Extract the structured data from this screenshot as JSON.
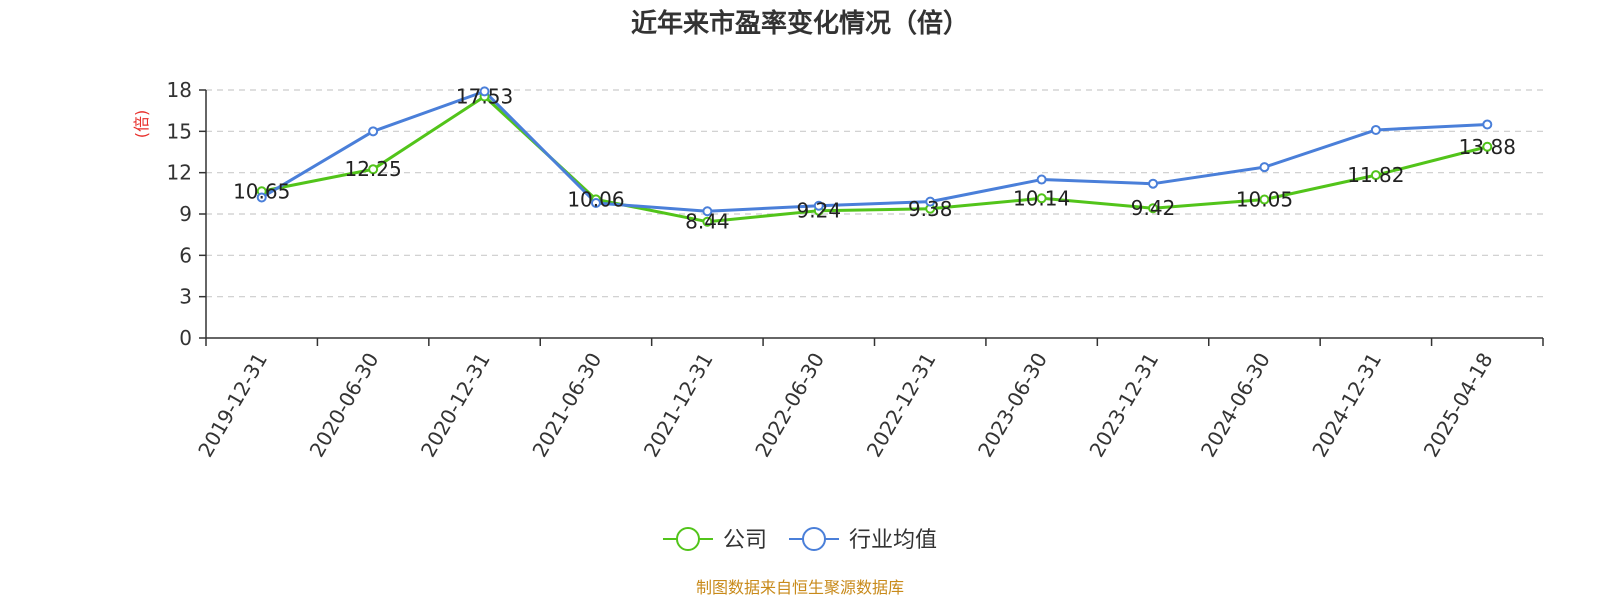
{
  "chart_data": {
    "type": "line",
    "title": "近年来市盈率变化情况（倍）",
    "ylabel": "(倍)",
    "ylim": [
      0,
      18
    ],
    "yticks": [
      0,
      3,
      6,
      9,
      12,
      15,
      18
    ],
    "grid": "horizontal dashed",
    "legend_position": "bottom",
    "categories": [
      "2019-12-31",
      "2020-06-30",
      "2020-12-31",
      "2021-06-30",
      "2021-12-31",
      "2022-06-30",
      "2022-12-31",
      "2023-06-30",
      "2023-12-31",
      "2024-06-30",
      "2024-12-31",
      "2025-04-18"
    ],
    "series": [
      {
        "name": "公司",
        "color": "#52c41a",
        "values": [
          10.65,
          12.25,
          17.53,
          10.06,
          8.44,
          9.24,
          9.38,
          10.14,
          9.42,
          10.05,
          11.82,
          13.88
        ],
        "labels": [
          "10.65",
          "12.25",
          "17.53",
          "10.06",
          "8.44",
          "9.24",
          "9.38",
          "10.14",
          "9.42",
          "10.05",
          "11.82",
          "13.88"
        ]
      },
      {
        "name": "行业均值",
        "color": "#4a7fd9",
        "values": [
          10.2,
          15.0,
          17.9,
          9.8,
          9.2,
          9.6,
          9.9,
          11.5,
          11.2,
          12.4,
          15.1,
          15.5
        ]
      }
    ],
    "source": "制图数据来自恒生聚源数据库",
    "colors": {
      "ylabel": "#e8302c",
      "source": "#c88a1a",
      "axis": "#333333",
      "grid": "#cccccc"
    }
  }
}
